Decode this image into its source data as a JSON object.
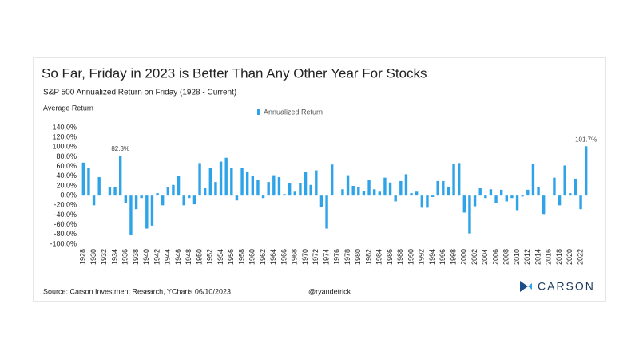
{
  "chart_data": {
    "type": "bar",
    "title": "So Far, Friday in 2023 is Better Than Any Other Year For Stocks",
    "subtitle": "S&P 500 Annualized Return on Friday (1928 - Current)",
    "y_label": "Average Return",
    "legend": "top",
    "categories": [
      "1928",
      null,
      "1930",
      null,
      "1932",
      null,
      "1934",
      null,
      "1936",
      null,
      "1938",
      null,
      "1940",
      null,
      "1942",
      null,
      "1944",
      null,
      "1946",
      null,
      "1948",
      null,
      "1950",
      null,
      "1952",
      null,
      "1954",
      null,
      "1956",
      null,
      "1958",
      null,
      "1960",
      null,
      "1962",
      null,
      "1964",
      null,
      "1966",
      null,
      "1968",
      null,
      "1970",
      null,
      "1972",
      null,
      "1974",
      null,
      "1976",
      null,
      "1978",
      null,
      "1980",
      null,
      "1982",
      null,
      "1984",
      null,
      "1986",
      null,
      "1988",
      null,
      "1990",
      null,
      "1992",
      null,
      "1994",
      null,
      "1996",
      null,
      "1998",
      null,
      "2000",
      null,
      "2002",
      null,
      "2004",
      null,
      "2006",
      null,
      "2008",
      null,
      "2010",
      null,
      "2012",
      null,
      "2014",
      null,
      "2016",
      null,
      "2018",
      null,
      "2020",
      null,
      "2022",
      null
    ],
    "series": [
      {
        "name": "Annualized Return",
        "color": "#2ea3e8",
        "values": [
          68,
          57,
          -20,
          38,
          0,
          17,
          18,
          82.3,
          -15,
          -82,
          -28,
          -5,
          -68,
          -62,
          5,
          -20,
          18,
          22,
          40,
          -20,
          -5,
          -18,
          67,
          15,
          57,
          28,
          70,
          78,
          57,
          -10,
          57,
          48,
          40,
          32,
          -5,
          28,
          42,
          38,
          3,
          25,
          8,
          25,
          48,
          22,
          52,
          -23,
          -68,
          64,
          0,
          13,
          42,
          20,
          17,
          10,
          33,
          13,
          8,
          37,
          27,
          -12,
          30,
          44,
          5,
          8,
          -25,
          -25,
          -3,
          30,
          30,
          18,
          65,
          67,
          -35,
          -78,
          -22,
          15,
          -5,
          13,
          -15,
          12,
          -12,
          -5,
          -30,
          -2,
          12,
          65,
          18,
          -38,
          0,
          37,
          -20,
          62,
          5,
          35,
          -28,
          101.7
        ],
        "value_labels": [
          null,
          null,
          null,
          null,
          null,
          null,
          null,
          "82.3%",
          null,
          null,
          null,
          null,
          null,
          null,
          null,
          null,
          null,
          null,
          null,
          null,
          null,
          null,
          null,
          null,
          null,
          null,
          null,
          null,
          null,
          null,
          null,
          null,
          null,
          null,
          null,
          null,
          null,
          null,
          null,
          null,
          null,
          null,
          null,
          null,
          null,
          null,
          null,
          null,
          null,
          null,
          null,
          null,
          null,
          null,
          null,
          null,
          null,
          null,
          null,
          null,
          null,
          null,
          null,
          null,
          null,
          null,
          null,
          null,
          null,
          null,
          null,
          null,
          null,
          null,
          null,
          null,
          null,
          null,
          null,
          null,
          null,
          null,
          null,
          null,
          null,
          null,
          null,
          null,
          null,
          null,
          null,
          null,
          null,
          null,
          null,
          "101.7%"
        ]
      }
    ],
    "ylim": [
      -100,
      140
    ],
    "yticks": [
      {
        "value": 140,
        "label": "140.0%"
      },
      {
        "value": 120,
        "label": "120.0%"
      },
      {
        "value": 100,
        "label": "100.0%"
      },
      {
        "value": 80,
        "label": "80.0%"
      },
      {
        "value": 60,
        "label": "60.0%"
      },
      {
        "value": 40,
        "label": "40.0%"
      },
      {
        "value": 20,
        "label": "20.0%"
      },
      {
        "value": 0,
        "label": "0.0%"
      },
      {
        "value": -20,
        "label": "-20.0%"
      },
      {
        "value": -40,
        "label": "-40.0%"
      },
      {
        "value": -60,
        "label": "-60.0%"
      },
      {
        "value": -80,
        "label": "-80.0%"
      },
      {
        "value": -100,
        "label": "-100.0%"
      }
    ],
    "grid": false
  },
  "footer": {
    "source": "Source: Carson Investment Research, YCharts 06/10/2023",
    "handle": "@ryandetrick",
    "logo": "CARSON"
  }
}
